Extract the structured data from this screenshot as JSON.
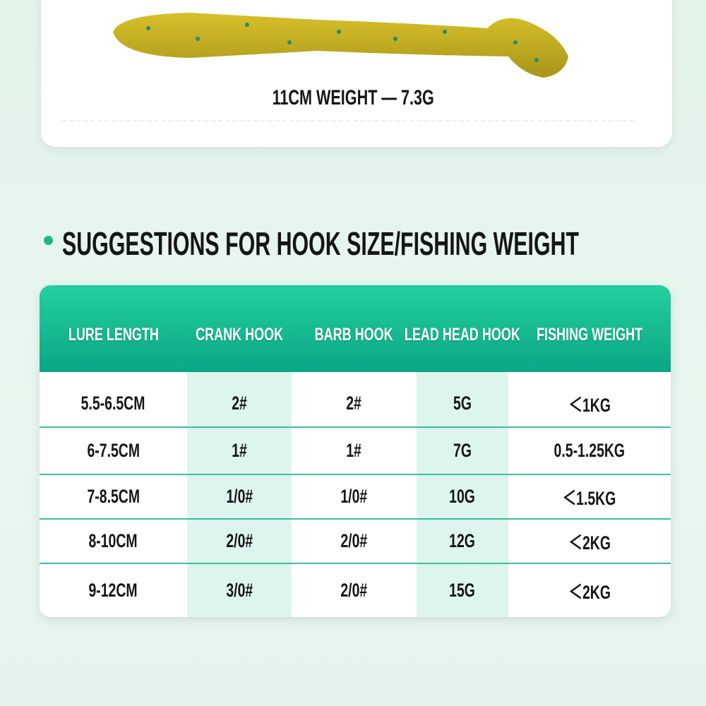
{
  "caption": "11CM WEIGHT — 7.3G",
  "heading": "SUGGESTIONS FOR HOOK SIZE/FISHING WEIGHT",
  "table": {
    "headers": [
      "LURE LENGTH",
      "CRANK HOOK",
      "BARB HOOK",
      "LEAD HEAD HOOK",
      "FISHING WEIGHT"
    ],
    "rows": [
      [
        "5.5-6.5CM",
        "2#",
        "2#",
        "5G",
        "＜1KG"
      ],
      [
        "6-7.5CM",
        "1#",
        "1#",
        "7G",
        "0.5-1.25KG"
      ],
      [
        "7-8.5CM",
        "1/0#",
        "1/0#",
        "10G",
        "＜1.5KG"
      ],
      [
        "8-10CM",
        "2/0#",
        "2/0#",
        "12G",
        "＜2KG"
      ],
      [
        "9-12CM",
        "3/0#",
        "2/0#",
        "15G",
        "＜2KG"
      ]
    ]
  }
}
